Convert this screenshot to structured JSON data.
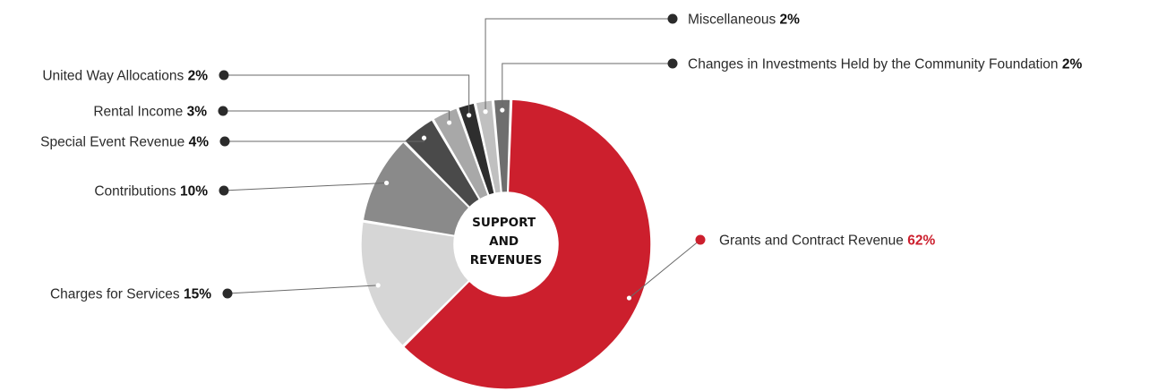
{
  "chart_data": {
    "type": "pie",
    "variant": "donut",
    "center_label": [
      "SUPPORT",
      "AND",
      "REVENUES"
    ],
    "slices": [
      {
        "label": "Grants and Contract Revenue",
        "value": 62,
        "value_text": "62%",
        "color": "#cc1f2d",
        "highlight": true
      },
      {
        "label": "Charges for Services",
        "value": 15,
        "value_text": "15%",
        "color": "#d6d6d6"
      },
      {
        "label": "Contributions",
        "value": 10,
        "value_text": "10%",
        "color": "#8a8a8a"
      },
      {
        "label": "Special Event Revenue",
        "value": 4,
        "value_text": "4%",
        "color": "#4a4a4a"
      },
      {
        "label": "Rental Income",
        "value": 3,
        "value_text": "3%",
        "color": "#a8a8a8"
      },
      {
        "label": "United Way Allocations",
        "value": 2,
        "value_text": "2%",
        "color": "#2e2e2e"
      },
      {
        "label": "Miscellaneous",
        "value": 2,
        "value_text": "2%",
        "color": "#c0c0c0"
      },
      {
        "label": "Changes in Investments Held by the Community Foundation",
        "value": 2,
        "value_text": "2%",
        "color": "#6e6e6e"
      }
    ],
    "title": "",
    "legend": "none",
    "colors": {
      "accent": "#cc1f2d",
      "dot": "#2b2b2b",
      "line": "#6a6a6a"
    }
  }
}
